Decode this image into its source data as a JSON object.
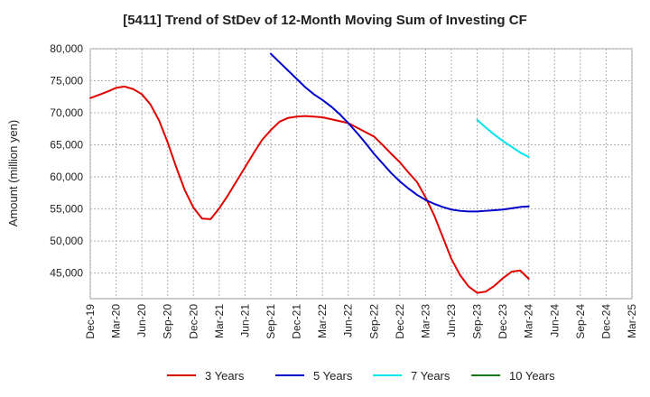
{
  "chart_data": {
    "type": "line",
    "title": "[5411]  Trend of StDev of 12-Month Moving Sum of Investing CF",
    "ylabel": "Amount (million yen)",
    "xlabel": "",
    "ylim": [
      41000,
      80000
    ],
    "yticks": [
      45000,
      50000,
      55000,
      60000,
      65000,
      70000,
      75000,
      80000
    ],
    "ytick_labels": [
      "45,000",
      "50,000",
      "55,000",
      "60,000",
      "65,000",
      "70,000",
      "75,000",
      "80,000"
    ],
    "x_start": "Dec-19",
    "x_ticks": [
      "Dec-19",
      "Mar-20",
      "Jun-20",
      "Sep-20",
      "Dec-20",
      "Mar-21",
      "Jun-21",
      "Sep-21",
      "Dec-21",
      "Mar-22",
      "Jun-22",
      "Sep-22",
      "Dec-22",
      "Mar-23",
      "Jun-23",
      "Sep-23",
      "Dec-23",
      "Mar-24",
      "Jun-24",
      "Sep-24",
      "Dec-24",
      "Mar-25"
    ],
    "grid": true,
    "legend_position": "bottom",
    "series": [
      {
        "name": "3 Years",
        "color": "#e00000",
        "x": [
          "Dec-19",
          "Jan-20",
          "Feb-20",
          "Mar-20",
          "Apr-20",
          "May-20",
          "Jun-20",
          "Jul-20",
          "Aug-20",
          "Sep-20",
          "Oct-20",
          "Nov-20",
          "Dec-20",
          "Jan-21",
          "Feb-21",
          "Mar-21",
          "Apr-21",
          "May-21",
          "Jun-21",
          "Jul-21",
          "Aug-21",
          "Sep-21",
          "Oct-21",
          "Nov-21",
          "Dec-21",
          "Jan-22",
          "Feb-22",
          "Mar-22",
          "Apr-22",
          "May-22",
          "Jun-22",
          "Jul-22",
          "Aug-22",
          "Sep-22",
          "Oct-22",
          "Nov-22",
          "Dec-22",
          "Jan-23",
          "Feb-23",
          "Mar-23",
          "Apr-23",
          "May-23",
          "Jun-23",
          "Jul-23",
          "Aug-23",
          "Sep-23",
          "Oct-23",
          "Nov-23",
          "Dec-23",
          "Jan-24",
          "Feb-24",
          "Mar-24"
        ],
        "values": [
          72300,
          72800,
          73300,
          73900,
          74100,
          73700,
          72900,
          71300,
          68800,
          65400,
          61500,
          57900,
          55200,
          53500,
          53400,
          55100,
          57100,
          59300,
          61500,
          63700,
          65800,
          67300,
          68600,
          69200,
          69400,
          69500,
          69400,
          69300,
          69000,
          68700,
          68400,
          67700,
          67000,
          66300,
          65000,
          63600,
          62300,
          60700,
          59200,
          56800,
          54000,
          50600,
          47200,
          44700,
          42900,
          41900,
          42100,
          43000,
          44200,
          45200,
          45400,
          44100
        ]
      },
      {
        "name": "5 Years",
        "color": "#0000cc",
        "x": [
          "Sep-21",
          "Oct-21",
          "Nov-21",
          "Dec-21",
          "Jan-22",
          "Feb-22",
          "Mar-22",
          "Apr-22",
          "May-22",
          "Jun-22",
          "Jul-22",
          "Aug-22",
          "Sep-22",
          "Oct-22",
          "Nov-22",
          "Dec-22",
          "Jan-23",
          "Feb-23",
          "Mar-23",
          "Apr-23",
          "May-23",
          "Jun-23",
          "Jul-23",
          "Aug-23",
          "Sep-23",
          "Oct-23",
          "Nov-23",
          "Dec-23",
          "Jan-24",
          "Feb-24",
          "Mar-24"
        ],
        "values": [
          79200,
          77900,
          76600,
          75300,
          74000,
          72900,
          72000,
          71000,
          69800,
          68400,
          66900,
          65300,
          63600,
          62100,
          60600,
          59300,
          58200,
          57200,
          56400,
          55800,
          55300,
          54900,
          54700,
          54600,
          54600,
          54700,
          54800,
          54900,
          55100,
          55300,
          55400
        ]
      },
      {
        "name": "7 Years",
        "color": "#00e5ee",
        "x": [
          "Sep-23",
          "Oct-23",
          "Nov-23",
          "Dec-23",
          "Jan-24",
          "Feb-24",
          "Mar-24"
        ],
        "values": [
          68900,
          67700,
          66600,
          65600,
          64700,
          63800,
          63100
        ]
      },
      {
        "name": "10 Years",
        "color": "#1a7a1a",
        "x": [],
        "values": []
      }
    ]
  }
}
